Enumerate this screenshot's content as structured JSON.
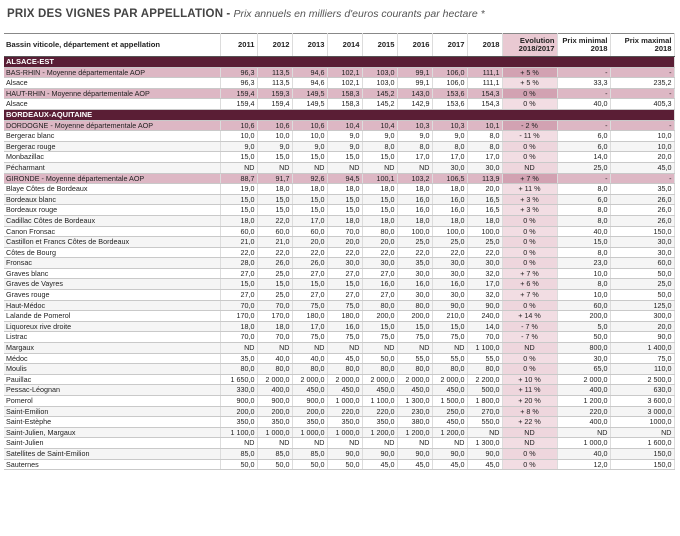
{
  "title": {
    "main": "PRIX DES VIGNES PAR APPELLATION",
    "separator": " - ",
    "subtitle": "Prix annuels en milliers d'euros courants par hectare *"
  },
  "headers": {
    "name": "Bassin viticole, département et appellation",
    "years": [
      "2011",
      "2012",
      "2013",
      "2014",
      "2015",
      "2016",
      "2017",
      "2018"
    ],
    "evolution": "Evolution 2018/2017",
    "prix_min": "Prix minimal 2018",
    "prix_max": "Prix maximal 2018"
  },
  "colors": {
    "region_band": "#5a1e35",
    "aop_row": "#ddb7c4",
    "evolution_column": "#f2dde3"
  },
  "rows": [
    {
      "type": "region",
      "name": "ALSACE-EST"
    },
    {
      "type": "aop",
      "name": "BAS-RHIN - Moyenne départementale AOP",
      "v": [
        "96,3",
        "113,5",
        "94,6",
        "102,1",
        "103,0",
        "99,1",
        "106,0",
        "111,1"
      ],
      "evo": "+ 5 %",
      "min": "-",
      "max": "-"
    },
    {
      "type": "row",
      "name": "Alsace",
      "v": [
        "96,3",
        "113,5",
        "94,6",
        "102,1",
        "103,0",
        "99,1",
        "106,0",
        "111,1"
      ],
      "evo": "+ 5 %",
      "min": "33,3",
      "max": "235,2"
    },
    {
      "type": "aop",
      "name": "HAUT-RHIN - Moyenne départementale AOP",
      "v": [
        "159,4",
        "159,3",
        "149,5",
        "158,3",
        "145,2",
        "143,0",
        "153,6",
        "154,3"
      ],
      "evo": "0 %",
      "min": "-",
      "max": "-"
    },
    {
      "type": "row",
      "name": "Alsace",
      "v": [
        "159,4",
        "159,4",
        "149,5",
        "158,3",
        "145,2",
        "142,9",
        "153,6",
        "154,3"
      ],
      "evo": "0 %",
      "min": "40,0",
      "max": "405,3"
    },
    {
      "type": "region",
      "name": "BORDEAUX-AQUITAINE"
    },
    {
      "type": "aop",
      "name": "DORDOGNE - Moyenne départementale AOP",
      "v": [
        "10,6",
        "10,6",
        "10,6",
        "10,4",
        "10,4",
        "10,3",
        "10,3",
        "10,1"
      ],
      "evo": "- 2 %",
      "min": "-",
      "max": "-"
    },
    {
      "type": "row",
      "name": "Bergerac blanc",
      "v": [
        "10,0",
        "10,0",
        "10,0",
        "9,0",
        "9,0",
        "9,0",
        "9,0",
        "8,0"
      ],
      "evo": "- 11 %",
      "min": "6,0",
      "max": "10,0"
    },
    {
      "type": "row",
      "name": "Bergerac rouge",
      "v": [
        "9,0",
        "9,0",
        "9,0",
        "9,0",
        "8,0",
        "8,0",
        "8,0",
        "8,0"
      ],
      "evo": "0 %",
      "min": "6,0",
      "max": "10,0"
    },
    {
      "type": "row",
      "name": "Monbazillac",
      "v": [
        "15,0",
        "15,0",
        "15,0",
        "15,0",
        "15,0",
        "17,0",
        "17,0",
        "17,0"
      ],
      "evo": "0 %",
      "min": "14,0",
      "max": "20,0"
    },
    {
      "type": "row",
      "name": "Pécharmant",
      "v": [
        "ND",
        "ND",
        "ND",
        "ND",
        "ND",
        "ND",
        "30,0",
        "30,0"
      ],
      "evo": "ND",
      "min": "25,0",
      "max": "45,0"
    },
    {
      "type": "aop",
      "name": "GIRONDE - Moyenne départementale AOP",
      "v": [
        "88,7",
        "91,7",
        "92,6",
        "94,5",
        "100,1",
        "103,2",
        "106,5",
        "113,9"
      ],
      "evo": "+ 7 %",
      "min": "-",
      "max": "-"
    },
    {
      "type": "row",
      "name": "Blaye Côtes de Bordeaux",
      "v": [
        "19,0",
        "18,0",
        "18,0",
        "18,0",
        "18,0",
        "18,0",
        "18,0",
        "20,0"
      ],
      "evo": "+ 11 %",
      "min": "8,0",
      "max": "35,0"
    },
    {
      "type": "row",
      "name": "Bordeaux blanc",
      "v": [
        "15,0",
        "15,0",
        "15,0",
        "15,0",
        "15,0",
        "16,0",
        "16,0",
        "16,5"
      ],
      "evo": "+ 3 %",
      "min": "6,0",
      "max": "26,0"
    },
    {
      "type": "row",
      "name": "Bordeaux rouge",
      "v": [
        "15,0",
        "15,0",
        "15,0",
        "15,0",
        "15,0",
        "16,0",
        "16,0",
        "16,5"
      ],
      "evo": "+ 3 %",
      "min": "8,0",
      "max": "26,0"
    },
    {
      "type": "row",
      "name": "Cadillac Côtes de Bordeaux",
      "v": [
        "18,0",
        "22,0",
        "17,0",
        "18,0",
        "18,0",
        "18,0",
        "18,0",
        "18,0"
      ],
      "evo": "0 %",
      "min": "8,0",
      "max": "26,0"
    },
    {
      "type": "row",
      "name": "Canon Fronsac",
      "v": [
        "60,0",
        "60,0",
        "60,0",
        "70,0",
        "80,0",
        "100,0",
        "100,0",
        "100,0"
      ],
      "evo": "0 %",
      "min": "40,0",
      "max": "150,0"
    },
    {
      "type": "row",
      "name": "Castillon et Francs Côtes de Bordeaux",
      "v": [
        "21,0",
        "21,0",
        "20,0",
        "20,0",
        "20,0",
        "25,0",
        "25,0",
        "25,0"
      ],
      "evo": "0 %",
      "min": "15,0",
      "max": "30,0"
    },
    {
      "type": "row",
      "name": "Côtes de Bourg",
      "v": [
        "22,0",
        "22,0",
        "22,0",
        "22,0",
        "22,0",
        "22,0",
        "22,0",
        "22,0"
      ],
      "evo": "0 %",
      "min": "8,0",
      "max": "30,0"
    },
    {
      "type": "row",
      "name": "Fronsac",
      "v": [
        "28,0",
        "26,0",
        "26,0",
        "30,0",
        "30,0",
        "35,0",
        "30,0",
        "30,0"
      ],
      "evo": "0 %",
      "min": "23,0",
      "max": "60,0"
    },
    {
      "type": "row",
      "name": "Graves blanc",
      "v": [
        "27,0",
        "25,0",
        "27,0",
        "27,0",
        "27,0",
        "30,0",
        "30,0",
        "32,0"
      ],
      "evo": "+ 7 %",
      "min": "10,0",
      "max": "50,0"
    },
    {
      "type": "row",
      "name": "Graves de Vayres",
      "v": [
        "15,0",
        "15,0",
        "15,0",
        "15,0",
        "16,0",
        "16,0",
        "16,0",
        "17,0"
      ],
      "evo": "+ 6 %",
      "min": "8,0",
      "max": "25,0"
    },
    {
      "type": "row",
      "name": "Graves rouge",
      "v": [
        "27,0",
        "25,0",
        "27,0",
        "27,0",
        "27,0",
        "30,0",
        "30,0",
        "32,0"
      ],
      "evo": "+ 7 %",
      "min": "10,0",
      "max": "50,0"
    },
    {
      "type": "row",
      "name": "Haut-Médoc",
      "v": [
        "70,0",
        "70,0",
        "75,0",
        "75,0",
        "80,0",
        "80,0",
        "90,0",
        "90,0"
      ],
      "evo": "0 %",
      "min": "60,0",
      "max": "125,0"
    },
    {
      "type": "row",
      "name": "Lalande de Pomerol",
      "v": [
        "170,0",
        "170,0",
        "180,0",
        "180,0",
        "200,0",
        "200,0",
        "210,0",
        "240,0"
      ],
      "evo": "+ 14 %",
      "min": "200,0",
      "max": "300,0"
    },
    {
      "type": "row",
      "name": "Liquoreux rive droite",
      "v": [
        "18,0",
        "18,0",
        "17,0",
        "16,0",
        "15,0",
        "15,0",
        "15,0",
        "14,0"
      ],
      "evo": "- 7 %",
      "min": "5,0",
      "max": "20,0"
    },
    {
      "type": "row",
      "name": "Listrac",
      "v": [
        "70,0",
        "70,0",
        "75,0",
        "75,0",
        "75,0",
        "75,0",
        "75,0",
        "70,0"
      ],
      "evo": "- 7 %",
      "min": "50,0",
      "max": "90,0"
    },
    {
      "type": "row",
      "name": "Margaux",
      "v": [
        "ND",
        "ND",
        "ND",
        "ND",
        "ND",
        "ND",
        "ND",
        "1 100,0"
      ],
      "evo": "ND",
      "min": "800,0",
      "max": "1 400,0"
    },
    {
      "type": "row",
      "name": "Médoc",
      "v": [
        "35,0",
        "40,0",
        "40,0",
        "45,0",
        "50,0",
        "55,0",
        "55,0",
        "55,0"
      ],
      "evo": "0 %",
      "min": "30,0",
      "max": "75,0"
    },
    {
      "type": "row",
      "name": "Moulis",
      "v": [
        "80,0",
        "80,0",
        "80,0",
        "80,0",
        "80,0",
        "80,0",
        "80,0",
        "80,0"
      ],
      "evo": "0 %",
      "min": "65,0",
      "max": "110,0"
    },
    {
      "type": "row",
      "name": "Pauillac",
      "v": [
        "1 650,0",
        "2 000,0",
        "2 000,0",
        "2 000,0",
        "2 000,0",
        "2 000,0",
        "2 000,0",
        "2 200,0"
      ],
      "evo": "+ 10 %",
      "min": "2 000,0",
      "max": "2 500,0"
    },
    {
      "type": "row",
      "name": "Pessac-Léognan",
      "v": [
        "330,0",
        "400,0",
        "450,0",
        "450,0",
        "450,0",
        "450,0",
        "450,0",
        "500,0"
      ],
      "evo": "+ 11 %",
      "min": "400,0",
      "max": "630,0"
    },
    {
      "type": "row",
      "name": "Pomerol",
      "v": [
        "900,0",
        "900,0",
        "900,0",
        "1 000,0",
        "1 100,0",
        "1 300,0",
        "1 500,0",
        "1 800,0"
      ],
      "evo": "+ 20 %",
      "min": "1 200,0",
      "max": "3 600,0"
    },
    {
      "type": "row",
      "name": "Saint-Emilion",
      "v": [
        "200,0",
        "200,0",
        "200,0",
        "220,0",
        "220,0",
        "230,0",
        "250,0",
        "270,0"
      ],
      "evo": "+ 8 %",
      "min": "220,0",
      "max": "3 000,0"
    },
    {
      "type": "row",
      "name": "Saint-Estèphe",
      "v": [
        "350,0",
        "350,0",
        "350,0",
        "350,0",
        "350,0",
        "380,0",
        "450,0",
        "550,0"
      ],
      "evo": "+ 22 %",
      "min": "400,0",
      "max": "1000,0"
    },
    {
      "type": "row",
      "name": "Saint-Julien, Margaux",
      "v": [
        "1 100,0",
        "1 000,0",
        "1 000,0",
        "1 000,0",
        "1 200,0",
        "1 200,0",
        "1 200,0",
        "ND"
      ],
      "evo": "ND",
      "min": "ND",
      "max": "ND"
    },
    {
      "type": "row",
      "name": "Saint-Julien",
      "v": [
        "ND",
        "ND",
        "ND",
        "ND",
        "ND",
        "ND",
        "ND",
        "1 300,0"
      ],
      "evo": "ND",
      "min": "1 000,0",
      "max": "1 600,0"
    },
    {
      "type": "row",
      "name": "Satellites de Saint-Emilion",
      "v": [
        "85,0",
        "85,0",
        "85,0",
        "90,0",
        "90,0",
        "90,0",
        "90,0",
        "90,0"
      ],
      "evo": "0 %",
      "min": "40,0",
      "max": "150,0"
    },
    {
      "type": "row",
      "name": "Sauternes",
      "v": [
        "50,0",
        "50,0",
        "50,0",
        "50,0",
        "45,0",
        "45,0",
        "45,0",
        "45,0"
      ],
      "evo": "0 %",
      "min": "12,0",
      "max": "150,0"
    }
  ]
}
